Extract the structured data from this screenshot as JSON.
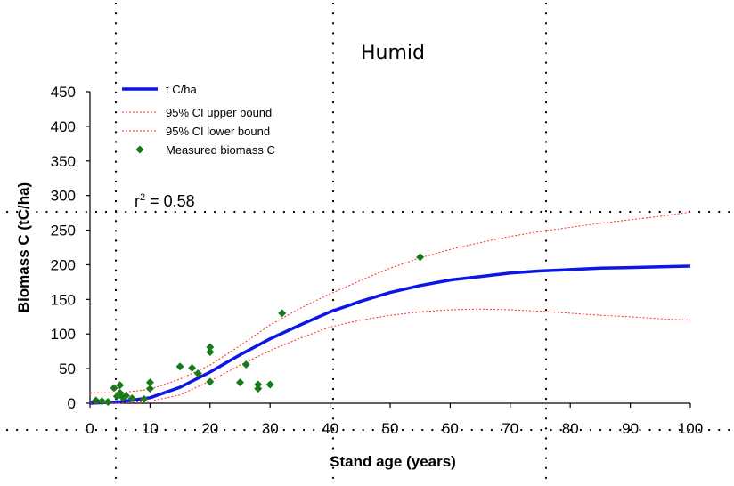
{
  "chart_data": {
    "type": "line",
    "title": "Humid",
    "xlabel": "Stand age (years)",
    "ylabel": "Biomass C (tC/ha)",
    "xlim": [
      0,
      100
    ],
    "ylim": [
      0,
      450
    ],
    "xticks": [
      0,
      10,
      20,
      30,
      40,
      50,
      60,
      70,
      80,
      90,
      100
    ],
    "yticks": [
      0,
      50,
      100,
      150,
      200,
      250,
      300,
      350,
      400,
      450
    ],
    "grid": false,
    "legend_position": "top-left",
    "annotation": {
      "base": "r",
      "sup": "2",
      "rest": " = 0.58"
    },
    "colors": {
      "fit": "#0b17e6",
      "ci": "#ff2a2a",
      "measured": "#1a7a1a"
    },
    "series": [
      {
        "name": "t C/ha",
        "kind": "line",
        "x": [
          0,
          5,
          10,
          15,
          20,
          25,
          30,
          35,
          40,
          45,
          50,
          55,
          60,
          65,
          70,
          75,
          80,
          85,
          90,
          95,
          100
        ],
        "y": [
          0,
          2,
          8,
          23,
          45,
          70,
          93,
          113,
          132,
          147,
          160,
          170,
          178,
          183,
          188,
          191,
          193,
          195,
          196,
          197,
          198
        ]
      },
      {
        "name": "95% CI upper bound",
        "kind": "dotted-line",
        "x": [
          0,
          5,
          10,
          15,
          20,
          25,
          30,
          35,
          40,
          45,
          50,
          55,
          60,
          65,
          70,
          75,
          80,
          85,
          90,
          95,
          100
        ],
        "y": [
          15,
          15,
          20,
          35,
          55,
          83,
          113,
          137,
          158,
          177,
          195,
          210,
          222,
          232,
          241,
          248,
          254,
          260,
          265,
          270,
          276
        ]
      },
      {
        "name": "95% CI lower bound",
        "kind": "dotted-line",
        "x": [
          0,
          5,
          10,
          15,
          20,
          25,
          30,
          35,
          40,
          45,
          50,
          55,
          60,
          65,
          70,
          75,
          80,
          85,
          90,
          95,
          100
        ],
        "y": [
          0,
          0,
          3,
          12,
          32,
          55,
          76,
          94,
          110,
          120,
          127,
          132,
          135,
          136,
          135,
          133,
          130,
          127,
          125,
          122,
          120
        ]
      },
      {
        "name": "Measured biomass C",
        "kind": "scatter",
        "points": [
          [
            1,
            4
          ],
          [
            2,
            3
          ],
          [
            3,
            2
          ],
          [
            4,
            22
          ],
          [
            4.5,
            10
          ],
          [
            5,
            26
          ],
          [
            5,
            15
          ],
          [
            5.5,
            8
          ],
          [
            6,
            11
          ],
          [
            7,
            7
          ],
          [
            9,
            6
          ],
          [
            10,
            30
          ],
          [
            10,
            21
          ],
          [
            15,
            53
          ],
          [
            17,
            51
          ],
          [
            18,
            43
          ],
          [
            20,
            81
          ],
          [
            20,
            74
          ],
          [
            20,
            31
          ],
          [
            25,
            30
          ],
          [
            26,
            56
          ],
          [
            28,
            27
          ],
          [
            28,
            21
          ],
          [
            30,
            27
          ],
          [
            32,
            130
          ],
          [
            55,
            211
          ]
        ]
      }
    ]
  }
}
